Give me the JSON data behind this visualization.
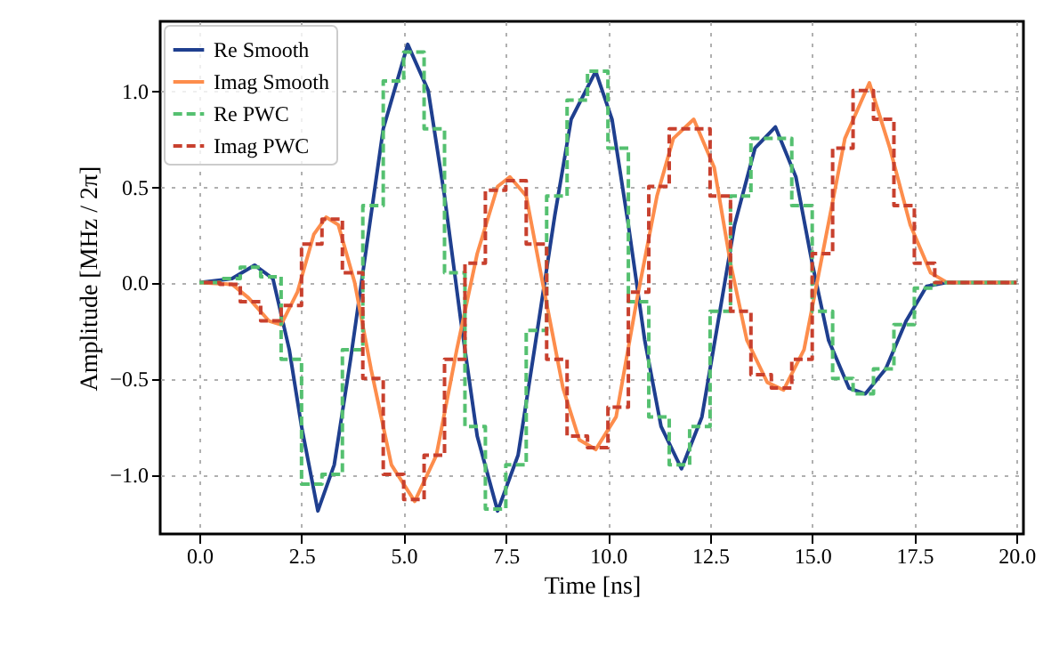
{
  "chart_data": {
    "type": "line",
    "xlabel": "Time [ns]",
    "ylabel": "Amplitude [MHz / 2π]",
    "x": [
      0,
      0.8,
      1.35,
      1.8,
      2.2,
      2.5,
      2.9,
      3.3,
      3.7,
      4.1,
      4.5,
      5.1,
      5.6,
      6.0,
      6.4,
      6.8,
      7.3,
      7.8,
      8.2,
      8.7,
      9.1,
      9.7,
      10.1,
      10.5,
      10.9,
      11.3,
      11.8,
      12.3,
      12.7,
      13.1,
      13.6,
      14.1,
      14.6,
      15.0,
      15.4,
      15.9,
      16.3,
      16.8,
      17.3,
      17.8,
      18.3,
      20
    ],
    "series": [
      {
        "name": "Re Smooth",
        "color": "#1f3f8f",
        "line_style": "solid",
        "values": [
          0,
          0.02,
          0.09,
          0.02,
          -0.35,
          -0.75,
          -1.19,
          -0.95,
          -0.4,
          0.2,
          0.8,
          1.24,
          1.0,
          0.45,
          -0.2,
          -0.8,
          -1.19,
          -0.9,
          -0.35,
          0.35,
          0.85,
          1.1,
          0.85,
          0.3,
          -0.3,
          -0.75,
          -0.97,
          -0.7,
          -0.2,
          0.3,
          0.7,
          0.81,
          0.55,
          0.1,
          -0.3,
          -0.55,
          -0.58,
          -0.45,
          -0.2,
          -0.02,
          0,
          0
        ]
      },
      {
        "name": "Imag Smooth",
        "color": "#fd8d4c",
        "line_style": "solid",
        "x": [
          0,
          0.8,
          1.2,
          1.7,
          2.0,
          2.4,
          2.8,
          3.1,
          3.4,
          3.8,
          4.2,
          4.7,
          5.27,
          5.8,
          6.3,
          6.8,
          7.3,
          7.6,
          8.0,
          8.4,
          8.9,
          9.3,
          9.7,
          10.2,
          10.7,
          11.2,
          11.6,
          12.1,
          12.6,
          13.0,
          13.4,
          13.9,
          14.3,
          14.8,
          15.3,
          15.8,
          16.4,
          16.9,
          17.4,
          17.9,
          18.3,
          20
        ],
        "values": [
          0,
          -0.01,
          -0.08,
          -0.2,
          -0.22,
          -0.05,
          0.25,
          0.34,
          0.3,
          0,
          -0.45,
          -0.95,
          -1.14,
          -0.9,
          -0.35,
          0.15,
          0.5,
          0.55,
          0.45,
          0,
          -0.55,
          -0.82,
          -0.87,
          -0.7,
          -0.1,
          0.45,
          0.75,
          0.85,
          0.6,
          0.1,
          -0.3,
          -0.52,
          -0.56,
          -0.35,
          0.2,
          0.75,
          1.04,
          0.7,
          0.3,
          0.05,
          0,
          0
        ]
      },
      {
        "name": "Re PWC",
        "type": "step",
        "color": "#55c070",
        "line_style": "dashed",
        "x": [
          0,
          0.5,
          1,
          1.5,
          2,
          2.5,
          3,
          3.5,
          4,
          4.5,
          5,
          5.5,
          6,
          6.5,
          7,
          7.5,
          8,
          8.5,
          9,
          9.5,
          10,
          10.5,
          11,
          11.5,
          12,
          12.5,
          13,
          13.5,
          14,
          14.5,
          15,
          15.5,
          16,
          16.5,
          17,
          17.5,
          18,
          18.5,
          19,
          19.5,
          20
        ],
        "values": [
          0,
          0.02,
          0.08,
          0.03,
          -0.4,
          -1.05,
          -1.0,
          -0.35,
          0.4,
          1.05,
          1.2,
          0.8,
          0.05,
          -0.75,
          -1.18,
          -0.95,
          -0.25,
          0.45,
          0.95,
          1.1,
          0.7,
          -0.1,
          -0.7,
          -0.95,
          -0.75,
          -0.15,
          0.45,
          0.75,
          0.75,
          0.4,
          -0.15,
          -0.5,
          -0.58,
          -0.45,
          -0.22,
          -0.03,
          0,
          0,
          0,
          0,
          0
        ]
      },
      {
        "name": "Imag PWC",
        "type": "step",
        "color": "#c8402e",
        "line_style": "dashed",
        "x": [
          0,
          0.5,
          1,
          1.5,
          2,
          2.5,
          3,
          3.5,
          4,
          4.5,
          5,
          5.5,
          6,
          6.5,
          7,
          7.5,
          8,
          8.5,
          9,
          9.5,
          10,
          10.5,
          11,
          11.5,
          12,
          12.5,
          13,
          13.5,
          14,
          14.5,
          15,
          15.5,
          16,
          16.5,
          17,
          17.5,
          18,
          18.5,
          19,
          19.5,
          20
        ],
        "values": [
          0,
          -0.01,
          -0.1,
          -0.2,
          -0.12,
          0.2,
          0.33,
          0.05,
          -0.5,
          -1.0,
          -1.13,
          -0.9,
          -0.4,
          0.1,
          0.48,
          0.53,
          0.2,
          -0.4,
          -0.8,
          -0.86,
          -0.65,
          -0.05,
          0.5,
          0.8,
          0.8,
          0.45,
          -0.15,
          -0.48,
          -0.55,
          -0.4,
          0.15,
          0.7,
          1.0,
          0.85,
          0.4,
          0.1,
          0,
          0,
          0,
          0,
          0
        ]
      }
    ],
    "xlim": [
      -0.96,
      20.17
    ],
    "xticks": [
      {
        "value": 0,
        "label": "0.0"
      },
      {
        "value": 2.5,
        "label": "2.5"
      },
      {
        "value": 5,
        "label": "5.0"
      },
      {
        "value": 7.5,
        "label": "7.5"
      },
      {
        "value": 10,
        "label": "10.0"
      },
      {
        "value": 12.5,
        "label": "12.5"
      },
      {
        "value": 15,
        "label": "15.0"
      },
      {
        "value": 17.5,
        "label": "17.5"
      },
      {
        "value": 20,
        "label": "20.0"
      }
    ],
    "ylim": [
      -1.31,
      1.36
    ],
    "yticks": [
      {
        "value": -1,
        "label": "−1.0"
      },
      {
        "value": -0.5,
        "label": "−0.5"
      },
      {
        "value": 0,
        "label": "0.0"
      },
      {
        "value": 0.5,
        "label": "0.5"
      },
      {
        "value": 1,
        "label": "1.0"
      }
    ],
    "grid": true,
    "legend": "top left"
  }
}
